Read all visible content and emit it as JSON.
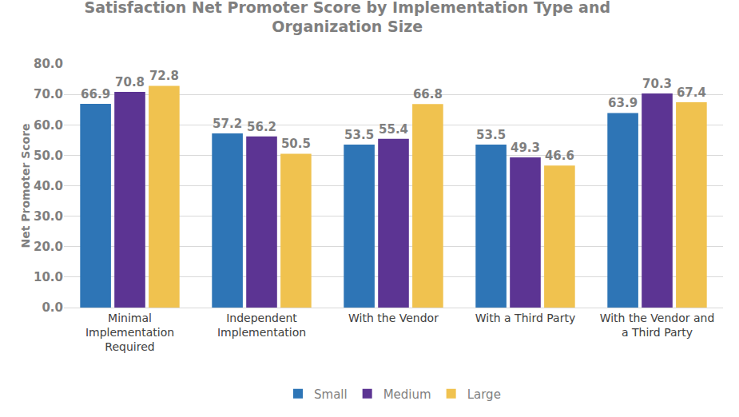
{
  "chart_data": {
    "type": "bar",
    "title": "Satisfaction Net Promoter Score by Implementation Type and Organization Size",
    "y_label": "Net Promoter Score",
    "categories": [
      "Minimal Implementation Required",
      "Independent Implementation",
      "With the Vendor",
      "With a Third Party",
      "With the Vendor and a Third Party"
    ],
    "series": [
      {
        "name": "Small",
        "color": "#2e75b6",
        "values": [
          66.9,
          57.2,
          53.5,
          53.5,
          63.9
        ]
      },
      {
        "name": "Medium",
        "color": "#5c3493",
        "values": [
          70.8,
          56.2,
          55.4,
          49.3,
          70.3
        ]
      },
      {
        "name": "Large",
        "color": "#f0c24f",
        "values": [
          72.8,
          50.5,
          66.8,
          46.6,
          67.4
        ]
      }
    ],
    "ylim": [
      0,
      80
    ],
    "yticks": [
      {
        "value": 0,
        "label": "0.0"
      },
      {
        "value": 10,
        "label": "10.0"
      },
      {
        "value": 20,
        "label": "20.0"
      },
      {
        "value": 30,
        "label": "30.0"
      },
      {
        "value": 40,
        "label": "40.0"
      },
      {
        "value": 50,
        "label": "50.0"
      },
      {
        "value": 60,
        "label": "60.0"
      },
      {
        "value": 70,
        "label": "70.0"
      },
      {
        "value": 80,
        "label": "80.0"
      }
    ],
    "grid": true,
    "data_labels": true,
    "legend": "bottom"
  }
}
